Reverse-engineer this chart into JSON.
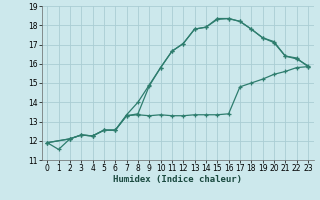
{
  "xlabel": "Humidex (Indice chaleur)",
  "bg_color": "#cce8ec",
  "grid_color": "#aacdd4",
  "line_color": "#2e7d6e",
  "xlim": [
    -0.5,
    23.5
  ],
  "ylim": [
    11,
    19
  ],
  "xticks": [
    0,
    1,
    2,
    3,
    4,
    5,
    6,
    7,
    8,
    9,
    10,
    11,
    12,
    13,
    14,
    15,
    16,
    17,
    18,
    19,
    20,
    21,
    22,
    23
  ],
  "yticks": [
    11,
    12,
    13,
    14,
    15,
    16,
    17,
    18,
    19
  ],
  "line1_x": [
    0,
    1,
    2,
    3,
    4,
    5,
    6,
    7,
    8,
    9,
    10,
    11,
    12,
    13,
    14,
    15,
    16,
    17,
    18,
    19,
    20,
    21,
    22,
    23
  ],
  "line1_y": [
    11.9,
    11.55,
    12.1,
    12.3,
    12.25,
    12.55,
    12.55,
    13.35,
    14.0,
    14.9,
    15.8,
    16.65,
    17.05,
    17.8,
    17.9,
    18.35,
    18.35,
    18.2,
    17.8,
    17.35,
    17.1,
    16.4,
    16.25,
    15.9
  ],
  "line2_x": [
    0,
    2,
    3,
    4,
    5,
    6,
    7,
    8,
    9,
    10,
    11,
    12,
    13,
    14,
    15,
    16,
    17,
    18,
    19,
    20,
    21,
    22,
    23
  ],
  "line2_y": [
    11.9,
    12.1,
    12.3,
    12.25,
    12.55,
    12.55,
    13.3,
    13.4,
    14.85,
    15.8,
    16.65,
    17.05,
    17.8,
    17.9,
    18.3,
    18.35,
    18.2,
    17.8,
    17.35,
    17.15,
    16.4,
    16.3,
    15.85
  ],
  "line3_x": [
    0,
    2,
    3,
    4,
    5,
    6,
    7,
    8,
    9,
    10,
    11,
    12,
    13,
    14,
    15,
    16,
    17,
    18,
    19,
    20,
    21,
    22,
    23
  ],
  "line3_y": [
    11.9,
    12.1,
    12.3,
    12.25,
    12.55,
    12.55,
    13.3,
    13.35,
    13.3,
    13.35,
    13.3,
    13.3,
    13.35,
    13.35,
    13.35,
    13.4,
    14.8,
    15.0,
    15.2,
    15.45,
    15.6,
    15.8,
    15.85
  ]
}
